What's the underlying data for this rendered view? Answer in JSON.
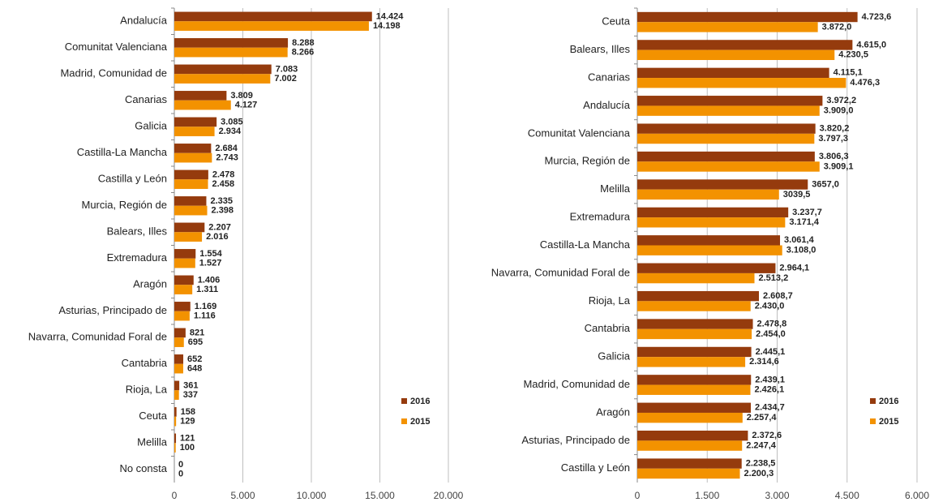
{
  "chart_data": [
    {
      "type": "bar",
      "orientation": "horizontal",
      "categories": [
        "Andalucía",
        "Comunitat Valenciana",
        "Madrid, Comunidad de",
        "Canarias",
        "Galicia",
        "Castilla-La Mancha",
        "Castilla y León",
        "Murcia, Región de",
        "Balears, Illes",
        "Extremadura",
        "Aragón",
        "Asturias, Principado de",
        "Navarra, Comunidad Foral de",
        "Cantabria",
        "Rioja, La",
        "Ceuta",
        "Melilla",
        "No consta"
      ],
      "series": [
        {
          "name": "2016",
          "color": "#953b0d",
          "values": [
            14424,
            8288,
            7083,
            3809,
            3085,
            2684,
            2478,
            2335,
            2207,
            1554,
            1406,
            1169,
            821,
            652,
            361,
            158,
            121,
            0
          ],
          "value_labels": [
            "14.424",
            "8.288",
            "7.083",
            "3.809",
            "3.085",
            "2.684",
            "2.478",
            "2.335",
            "2.207",
            "1.554",
            "1.406",
            "1.169",
            "821",
            "652",
            "361",
            "158",
            "121",
            "0"
          ]
        },
        {
          "name": "2015",
          "color": "#f39200",
          "values": [
            14198,
            8266,
            7002,
            4127,
            2934,
            2743,
            2458,
            2398,
            2016,
            1527,
            1311,
            1116,
            695,
            648,
            337,
            129,
            100,
            0
          ],
          "value_labels": [
            "14.198",
            "8.266",
            "7.002",
            "4.127",
            "2.934",
            "2.743",
            "2.458",
            "2.398",
            "2.016",
            "1.527",
            "1.311",
            "1.116",
            "695",
            "648",
            "337",
            "129",
            "100",
            "0"
          ]
        }
      ],
      "xlim": [
        0,
        20000
      ],
      "xticks": [
        0,
        {
          "value": 5000,
          "label": "5.000"
        },
        {
          "value": 10000,
          "label": "10.000"
        },
        {
          "value": 15000,
          "label": "15.000"
        },
        {
          "value": 20000,
          "label": "20.000"
        }
      ],
      "grid": true,
      "legend": "lower right"
    },
    {
      "type": "bar",
      "orientation": "horizontal",
      "categories": [
        "Ceuta",
        "Balears, Illes",
        "Canarias",
        "Andalucía",
        "Comunitat Valenciana",
        "Murcia, Región de",
        "Melilla",
        "Extremadura",
        "Castilla-La Mancha",
        "Navarra, Comunidad Foral de",
        "Rioja, La",
        "Cantabria",
        "Galicia",
        "Madrid, Comunidad de",
        "Aragón",
        "Asturias, Principado de",
        "Castilla y León"
      ],
      "series": [
        {
          "name": "2016",
          "color": "#953b0d",
          "values": [
            4723.6,
            4615.0,
            4115.1,
            3972.2,
            3820.2,
            3806.3,
            3657.0,
            3237.7,
            3061.4,
            2964.1,
            2608.7,
            2478.8,
            2445.1,
            2439.1,
            2434.7,
            2372.6,
            2238.5
          ],
          "value_labels": [
            "4.723,6",
            "4.615,0",
            "4.115,1",
            "3.972,2",
            "3.820,2",
            "3.806,3",
            "3657,0",
            "3.237,7",
            "3.061,4",
            "2.964,1",
            "2.608,7",
            "2.478,8",
            "2.445,1",
            "2.439,1",
            "2.434,7",
            "2.372,6",
            "2.238,5"
          ]
        },
        {
          "name": "2015",
          "color": "#f39200",
          "values": [
            3872.0,
            4230.5,
            4476.3,
            3909.0,
            3797.3,
            3909.1,
            3039.5,
            3171.4,
            3108.0,
            2513.2,
            2430.0,
            2454.0,
            2314.6,
            2426.1,
            2257.4,
            2247.4,
            2200.3
          ],
          "value_labels": [
            "3.872,0",
            "4.230,5",
            "4.476,3",
            "3.909,0",
            "3.797,3",
            "3.909,1",
            "3039,5",
            "3.171,4",
            "3.108,0",
            "2.513,2",
            "2.430,0",
            "2.454,0",
            "2.314,6",
            "2.426,1",
            "2.257,4",
            "2.247,4",
            "2.200,3"
          ]
        }
      ],
      "xlim": [
        0,
        6000
      ],
      "xticks": [
        0,
        {
          "value": 1500,
          "label": "1.500"
        },
        {
          "value": 3000,
          "label": "3.000"
        },
        {
          "value": 4500,
          "label": "4.500"
        },
        {
          "value": 6000,
          "label": "6.000"
        }
      ],
      "grid": true,
      "legend": "lower right"
    }
  ]
}
